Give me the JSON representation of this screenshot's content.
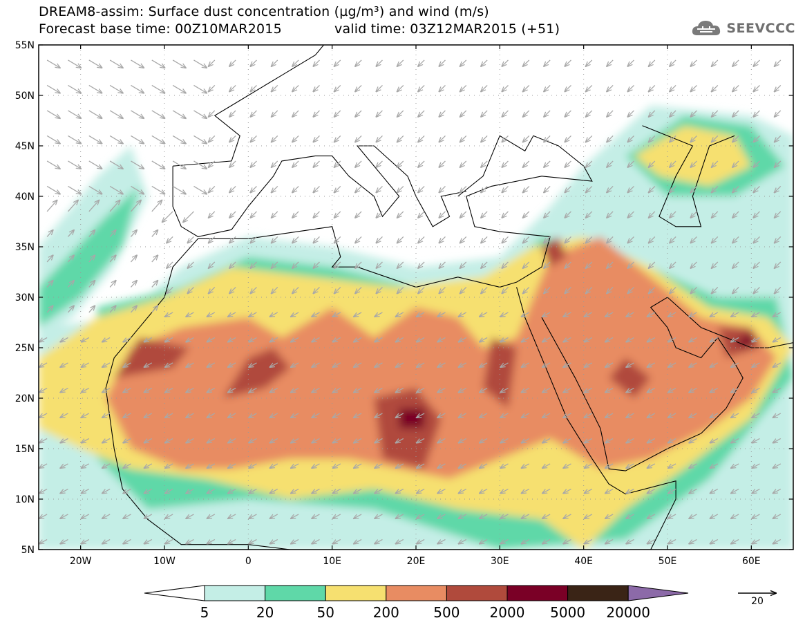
{
  "header": {
    "title_line1": "DREAM8-assim: Surface dust concentration (µg/m³) and wind (m/s)",
    "base_time": "Forecast base time: 00Z10MAR2015",
    "valid_time": "valid time: 03Z12MAR2015 (+51)",
    "brand": "SEEVCCC"
  },
  "map": {
    "lon_range": [
      -25,
      65
    ],
    "lat_range": [
      5,
      55
    ],
    "lon_ticks": [
      "20W",
      "10W",
      "0",
      "10E",
      "20E",
      "30E",
      "40E",
      "50E",
      "60E"
    ],
    "lat_ticks": [
      "55N",
      "50N",
      "45N",
      "40N",
      "35N",
      "30N",
      "25N",
      "20N",
      "15N",
      "10N",
      "5N"
    ],
    "grid": "dotted",
    "coastline_color": "#000000",
    "wind_arrow_color": "#a8a8a8"
  },
  "colorbar": {
    "levels": [
      "5",
      "20",
      "50",
      "200",
      "500",
      "2000",
      "5000",
      "20000"
    ],
    "colors": [
      "#ffffff",
      "#c4eee6",
      "#5fd8a8",
      "#f6e070",
      "#e88c62",
      "#b04a3c",
      "#7a0026",
      "#3a2416",
      "#8c6aa8"
    ]
  },
  "wind_reference": {
    "label": "20"
  }
}
